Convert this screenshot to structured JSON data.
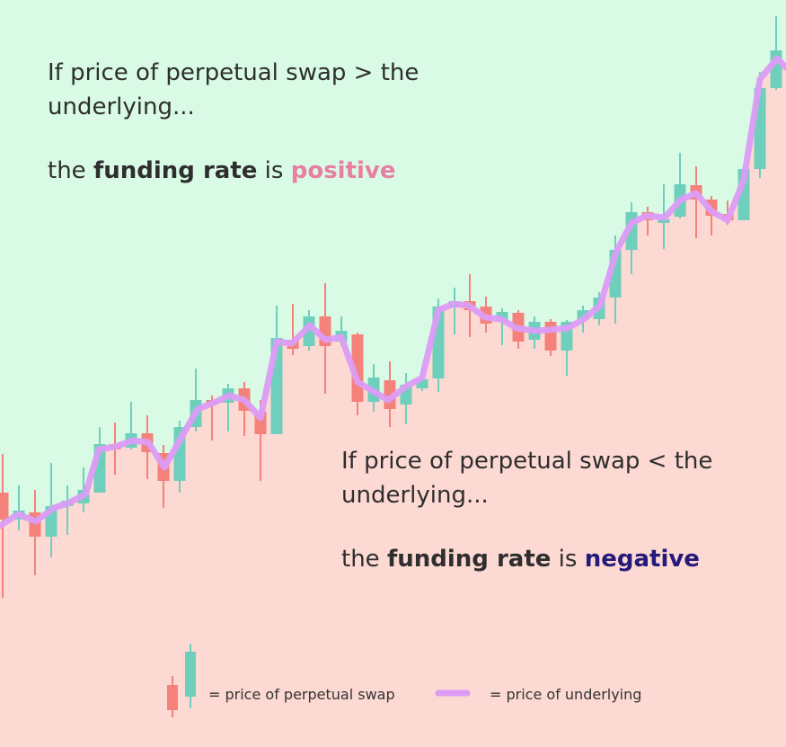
{
  "top": {
    "lines": [
      "If price of perpetual swap > the",
      "underlying..."
    ],
    "rate": {
      "prefix": "the",
      "bold": "funding rate",
      "middle": "is",
      "sign": "positive"
    }
  },
  "bottom": {
    "lines": [
      "If price of perpetual swap < the",
      "underlying..."
    ],
    "rate": {
      "prefix": "the",
      "bold": "funding rate",
      "middle": "is",
      "sign": "negative"
    }
  },
  "legend": {
    "candles": "= price of perpetual swap",
    "line": "= price of underlying"
  }
}
